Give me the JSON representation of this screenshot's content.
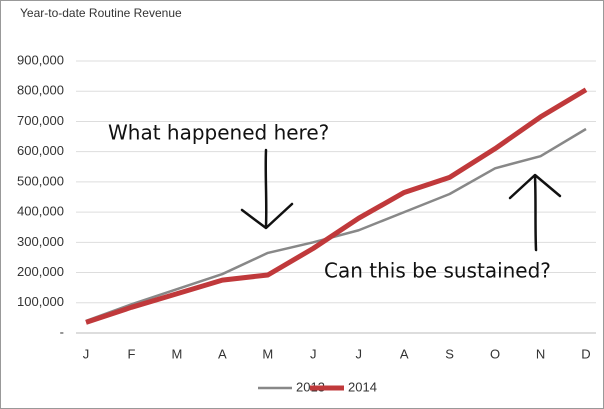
{
  "chart_data": {
    "type": "line",
    "title": "Year-to-date Routine Revenue",
    "categories": [
      "J",
      "F",
      "M",
      "A",
      "M",
      "J",
      "J",
      "A",
      "S",
      "O",
      "N",
      "D"
    ],
    "series": [
      {
        "name": "2013",
        "color": "#888888",
        "values": [
          40000,
          95000,
          145000,
          195000,
          265000,
          300000,
          340000,
          400000,
          460000,
          545000,
          585000,
          675000
        ]
      },
      {
        "name": "2014",
        "color": "#c0393b",
        "values": [
          35000,
          85000,
          130000,
          175000,
          192000,
          280000,
          380000,
          465000,
          515000,
          610000,
          715000,
          805000
        ]
      }
    ],
    "ylim": [
      0,
      900000
    ],
    "yticks": [
      {
        "value": 0,
        "label": "-"
      },
      {
        "value": 100000,
        "label": "100,000"
      },
      {
        "value": 200000,
        "label": "200,000"
      },
      {
        "value": 300000,
        "label": "300,000"
      },
      {
        "value": 400000,
        "label": "400,000"
      },
      {
        "value": 500000,
        "label": "500,000"
      },
      {
        "value": 600000,
        "label": "600,000"
      },
      {
        "value": 700000,
        "label": "700,000"
      },
      {
        "value": 800000,
        "label": "800,000"
      },
      {
        "value": 900000,
        "label": "900,000"
      }
    ],
    "grid": true,
    "legend": "bottom",
    "annotations": [
      "What happened here?",
      "Can this be sustained?"
    ]
  }
}
